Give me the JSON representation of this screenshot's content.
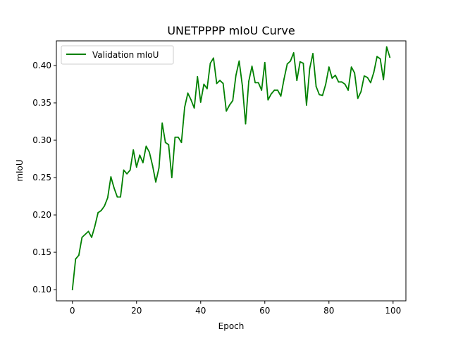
{
  "chart_data": {
    "type": "line",
    "title": "UNETPPPP mIoU Curve",
    "xlabel": "Epoch",
    "ylabel": "mIoU",
    "xlim": [
      -5,
      104
    ],
    "ylim": [
      0.085,
      0.433
    ],
    "xticks": [
      0,
      20,
      40,
      60,
      80,
      100
    ],
    "yticks": [
      0.1,
      0.15,
      0.2,
      0.25,
      0.3,
      0.35,
      0.4
    ],
    "xtick_labels": [
      "0",
      "20",
      "40",
      "60",
      "80",
      "100"
    ],
    "ytick_labels": [
      "0.10",
      "0.15",
      "0.20",
      "0.25",
      "0.30",
      "0.35",
      "0.40"
    ],
    "grid": false,
    "legend_position": "upper-left",
    "series": [
      {
        "name": "Validation mIoU",
        "color": "#008000",
        "x": [
          0,
          1,
          2,
          3,
          4,
          5,
          6,
          7,
          8,
          9,
          10,
          11,
          12,
          13,
          14,
          15,
          16,
          17,
          18,
          19,
          20,
          21,
          22,
          23,
          24,
          25,
          26,
          27,
          28,
          29,
          30,
          31,
          32,
          33,
          34,
          35,
          36,
          37,
          38,
          39,
          40,
          41,
          42,
          43,
          44,
          45,
          46,
          47,
          48,
          49,
          50,
          51,
          52,
          53,
          54,
          55,
          56,
          57,
          58,
          59,
          60,
          61,
          62,
          63,
          64,
          65,
          66,
          67,
          68,
          69,
          70,
          71,
          72,
          73,
          74,
          75,
          76,
          77,
          78,
          79,
          80,
          81,
          82,
          83,
          84,
          85,
          86,
          87,
          88,
          89,
          90,
          91,
          92,
          93,
          94,
          95,
          96,
          97,
          98,
          99
        ],
        "y": [
          0.1,
          0.141,
          0.146,
          0.17,
          0.174,
          0.178,
          0.17,
          0.185,
          0.203,
          0.206,
          0.212,
          0.223,
          0.251,
          0.236,
          0.224,
          0.224,
          0.26,
          0.255,
          0.26,
          0.287,
          0.264,
          0.28,
          0.27,
          0.292,
          0.284,
          0.266,
          0.244,
          0.263,
          0.323,
          0.297,
          0.294,
          0.25,
          0.304,
          0.304,
          0.297,
          0.344,
          0.363,
          0.354,
          0.343,
          0.385,
          0.351,
          0.375,
          0.369,
          0.403,
          0.41,
          0.376,
          0.38,
          0.376,
          0.339,
          0.347,
          0.353,
          0.387,
          0.406,
          0.373,
          0.322,
          0.379,
          0.399,
          0.377,
          0.377,
          0.367,
          0.404,
          0.354,
          0.362,
          0.367,
          0.367,
          0.359,
          0.382,
          0.402,
          0.406,
          0.417,
          0.38,
          0.405,
          0.403,
          0.347,
          0.396,
          0.416,
          0.372,
          0.361,
          0.36,
          0.375,
          0.398,
          0.383,
          0.387,
          0.378,
          0.378,
          0.375,
          0.367,
          0.398,
          0.39,
          0.356,
          0.365,
          0.386,
          0.384,
          0.377,
          0.391,
          0.412,
          0.409,
          0.381,
          0.425,
          0.411
        ]
      }
    ]
  }
}
